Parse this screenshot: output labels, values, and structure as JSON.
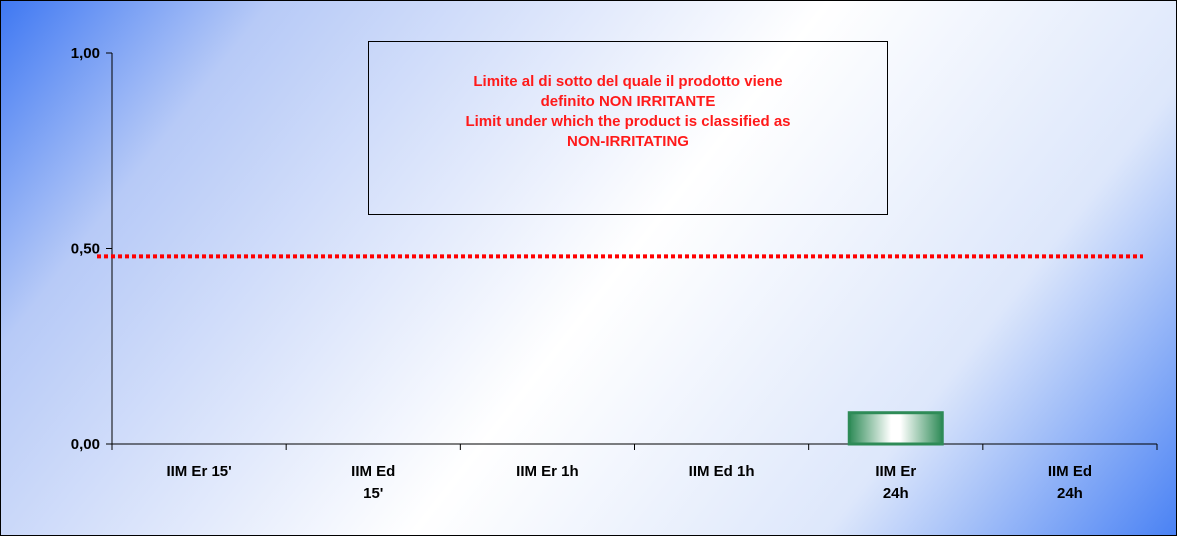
{
  "chart_data": {
    "type": "bar",
    "categories": [
      [
        "IIM Er 15'"
      ],
      [
        "IIM Ed",
        "15'"
      ],
      [
        "IIM Er 1h"
      ],
      [
        "IIM Ed 1h"
      ],
      [
        "IIM Er",
        "24h"
      ],
      [
        "IIM Ed",
        "24h"
      ]
    ],
    "values": [
      0,
      0,
      0,
      0,
      0.08,
      0
    ],
    "ylim": [
      0,
      1
    ],
    "yticks": [
      "0,00",
      "0,50",
      "1,00"
    ],
    "ytick_values": [
      0,
      0.5,
      1
    ],
    "threshold": 0.48,
    "threshold_color": "#ff0000",
    "bar_color": "#2e8b57",
    "annotation": [
      "Limite al di sotto  del quale il prodotto viene",
      "definito NON IRRITANTE",
      "Limit under which the product is classified as",
      "NON-IRRITATING"
    ],
    "annotation_color": "#ff1a1a"
  }
}
